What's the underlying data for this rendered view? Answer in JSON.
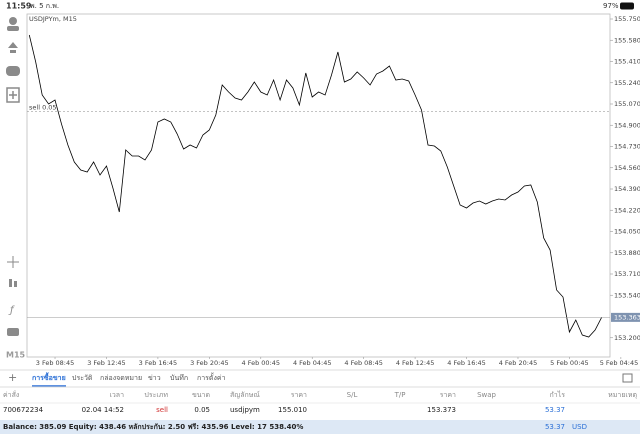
{
  "status_bar": {
    "time": "11:59",
    "date": "พ. 5 ก.พ.",
    "battery": "97%"
  },
  "toolbar": {
    "timeframe": "M15"
  },
  "chart_data": {
    "type": "line",
    "title": "USDJPYm, M15",
    "color": "#000000",
    "categories": [
      null,
      null,
      null,
      null,
      "3 Feb 08:45",
      null,
      null,
      null,
      null,
      null,
      null,
      null,
      "3 Feb 12:45",
      null,
      null,
      null,
      null,
      null,
      null,
      null,
      "3 Feb 16:45",
      null,
      null,
      null,
      null,
      null,
      null,
      null,
      "3 Feb 20:45",
      null,
      null,
      null,
      null,
      null,
      null,
      null,
      "4 Feb 00:45",
      null,
      null,
      null,
      null,
      null,
      null,
      null,
      "4 Feb 04:45",
      null,
      null,
      null,
      null,
      null,
      null,
      null,
      "4 Feb 08:45",
      null,
      null,
      null,
      null,
      null,
      null,
      null,
      "4 Feb 12:45",
      null,
      null,
      null,
      null,
      null,
      null,
      null,
      "4 Feb 16:45",
      null,
      null,
      null,
      null,
      null,
      null,
      null,
      "4 Feb 20:45",
      null,
      null,
      null,
      null,
      null,
      null,
      null,
      "5 Feb 00:45",
      null,
      null,
      null,
      null,
      null,
      null,
      null,
      "5 Feb 04:45"
    ],
    "values": [
      155.622,
      155.406,
      155.142,
      155.07,
      155.102,
      154.91,
      154.742,
      154.606,
      154.542,
      154.526,
      154.606,
      154.502,
      154.574,
      154.398,
      154.206,
      154.702,
      154.654,
      154.654,
      154.622,
      154.702,
      154.926,
      154.95,
      154.926,
      154.83,
      154.71,
      154.742,
      154.718,
      154.822,
      154.862,
      154.982,
      155.222,
      155.166,
      155.118,
      155.102,
      155.166,
      155.246,
      155.166,
      155.142,
      155.262,
      155.102,
      155.262,
      155.198,
      155.062,
      155.318,
      155.126,
      155.166,
      155.142,
      155.302,
      155.486,
      155.246,
      155.27,
      155.326,
      155.278,
      155.222,
      155.31,
      155.334,
      155.374,
      155.262,
      155.27,
      155.254,
      155.142,
      155.022,
      154.742,
      154.734,
      154.694,
      154.566,
      154.414,
      154.262,
      154.238,
      154.278,
      154.294,
      154.27,
      154.294,
      154.31,
      154.302,
      154.342,
      154.366,
      154.414,
      154.422,
      154.286,
      153.998,
      153.902,
      153.582,
      153.526,
      153.246,
      153.342,
      153.222,
      153.206,
      153.262,
      153.363,
      null,
      null,
      null
    ],
    "ylim": [
      153.046,
      155.79
    ],
    "yticks": [
      {
        "value": 155.75,
        "label": "155.750"
      },
      {
        "value": 155.58,
        "label": "155.580"
      },
      {
        "value": 155.41,
        "label": "155.410"
      },
      {
        "value": 155.24,
        "label": "155.240"
      },
      {
        "value": 155.07,
        "label": "155.070"
      },
      {
        "value": 154.9,
        "label": "154.900"
      },
      {
        "value": 154.73,
        "label": "154.730"
      },
      {
        "value": 154.56,
        "label": "154.560"
      },
      {
        "value": 154.39,
        "label": "154.390"
      },
      {
        "value": 154.22,
        "label": "154.220"
      },
      {
        "value": 154.05,
        "label": "154.050"
      },
      {
        "value": 153.88,
        "label": "153.880"
      },
      {
        "value": 153.71,
        "label": "153.710"
      },
      {
        "value": 153.54,
        "label": "153.540"
      },
      {
        "value": 153.2,
        "label": "153.200"
      }
    ],
    "annotations": [
      {
        "label": "sell 0.05",
        "value": 155.01
      }
    ],
    "grid": false
  },
  "tabs": [
    "การซื้อขาย",
    "ประวัติ",
    "กล่องจดหมาย",
    "ข่าว",
    "บันทึก",
    "การตั้งค่า"
  ],
  "table": {
    "header": [
      "ค่าสั่ง",
      "เวลา",
      "ประเภท",
      "ขนาด",
      "สัญลักษณ์",
      "ราคา",
      "S/L",
      "T/P",
      "ราคา",
      "Swap",
      "กำไร",
      "หมายเหตุ"
    ],
    "rows": [
      {
        "order": "700672234",
        "time": "02.04 14:52",
        "type": "sell",
        "volume": "0.05",
        "symbol": "usdjpym",
        "price_open": "155.010",
        "price_current": "153.373",
        "profit": "53.37"
      }
    ]
  },
  "balance": {
    "summary": "Balance: 385.09 Equity: 438.46 หลักประกัน: 2.50 ฟรี: 435.96 Level: 17 538.40%",
    "profit": "53.37",
    "currency": "USD"
  }
}
